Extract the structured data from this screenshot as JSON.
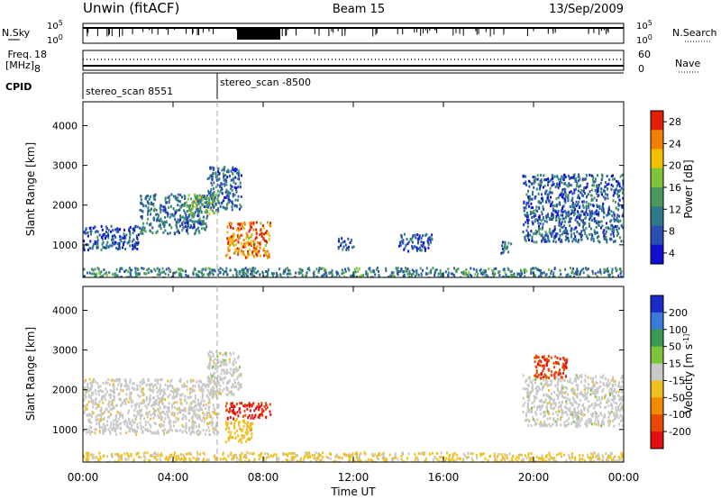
{
  "header": {
    "left": "Unwin (fitACF)",
    "center": "Beam 15",
    "right": "13/Sep/2009"
  },
  "top_panels": {
    "nsky_label": "N.Sky",
    "nsky_ticks": [
      "10^5",
      "10^0"
    ],
    "nsearch_label": "N.Search",
    "freq_label": "Freq.",
    "freq_unit": "[MHz]",
    "freq_ticks": [
      "18",
      "8"
    ],
    "nave_label": "Nave",
    "nave_ticks": [
      "60",
      "0"
    ],
    "cpid_label": "CPID",
    "cpid_segments": [
      "stereo_scan 8551",
      "stereo_scan -8500"
    ]
  },
  "chart_data": [
    {
      "type": "heatmap",
      "title": "",
      "ylabel": "Slant Range [km]",
      "xlabel": "",
      "ylim": [
        180,
        4600
      ],
      "yticks": [
        1000,
        2000,
        3000,
        4000
      ],
      "xlim": [
        0,
        24
      ],
      "xticks": [
        "00:00",
        "04:00",
        "08:00",
        "12:00",
        "16:00",
        "20:00",
        "00:00"
      ],
      "colorbar": {
        "label": "Power [dB]",
        "ticks": [
          "4",
          "8",
          "12",
          "16",
          "20",
          "24",
          "28"
        ],
        "range": [
          0,
          30
        ]
      },
      "regions": [
        {
          "t": [
            0,
            2.5
          ],
          "r": [
            900,
            1500
          ],
          "value": 6
        },
        {
          "t": [
            2.5,
            5.5
          ],
          "r": [
            1300,
            2300
          ],
          "value": 9
        },
        {
          "t": [
            4.5,
            6
          ],
          "r": [
            1800,
            2300
          ],
          "value": 14
        },
        {
          "t": [
            5.5,
            7
          ],
          "r": [
            1900,
            3000
          ],
          "value": 8
        },
        {
          "t": [
            6.3,
            8.3
          ],
          "r": [
            700,
            1600
          ],
          "value": 24
        },
        {
          "t": [
            11.3,
            12
          ],
          "r": [
            900,
            1200
          ],
          "value": 6
        },
        {
          "t": [
            14,
            15.5
          ],
          "r": [
            850,
            1300
          ],
          "value": 6
        },
        {
          "t": [
            18.5,
            19
          ],
          "r": [
            800,
            1100
          ],
          "value": 8
        },
        {
          "t": [
            19.5,
            24
          ],
          "r": [
            1100,
            2800
          ],
          "value": 7
        },
        {
          "t": [
            0,
            24
          ],
          "r": [
            180,
            450
          ],
          "value": 10
        }
      ]
    },
    {
      "type": "heatmap",
      "title": "",
      "ylabel": "Slant Range [km]",
      "xlabel": "Time UT",
      "ylim": [
        180,
        4600
      ],
      "yticks": [
        1000,
        2000,
        3000,
        4000
      ],
      "xlim": [
        0,
        24
      ],
      "xticks": [
        "00:00",
        "04:00",
        "08:00",
        "12:00",
        "16:00",
        "20:00",
        "00:00"
      ],
      "colorbar": {
        "label": "Velocity [m s^-1]",
        "ticks": [
          "200",
          "100",
          "50",
          "15",
          "-15",
          "-50",
          "-100",
          "-200"
        ],
        "range": [
          -250,
          250
        ]
      },
      "regions": [
        {
          "t": [
            0,
            6
          ],
          "r": [
            900,
            2300
          ],
          "value": -5
        },
        {
          "t": [
            5.5,
            7
          ],
          "r": [
            1900,
            3000
          ],
          "value": 0
        },
        {
          "t": [
            6.3,
            8.3
          ],
          "r": [
            1300,
            1700
          ],
          "value": -200
        },
        {
          "t": [
            6.3,
            7.5
          ],
          "r": [
            700,
            1300
          ],
          "value": -60
        },
        {
          "t": [
            19.5,
            24
          ],
          "r": [
            1100,
            2400
          ],
          "value": 0
        },
        {
          "t": [
            20,
            21.5
          ],
          "r": [
            2300,
            2900
          ],
          "value": -180
        },
        {
          "t": [
            0,
            24
          ],
          "r": [
            180,
            450
          ],
          "value": -40
        }
      ]
    }
  ],
  "colors": {
    "power_scale": [
      "#1010d0",
      "#2a4fb0",
      "#2e7a8a",
      "#4c9a5a",
      "#7cc43a",
      "#f0c000",
      "#f08000",
      "#e02000"
    ],
    "velocity_scale": [
      "#1a2cc8",
      "#3a7ad8",
      "#3c9a50",
      "#7cc43a",
      "#c8c8c8",
      "#f0c020",
      "#f08a00",
      "#e84800",
      "#e01010"
    ]
  }
}
